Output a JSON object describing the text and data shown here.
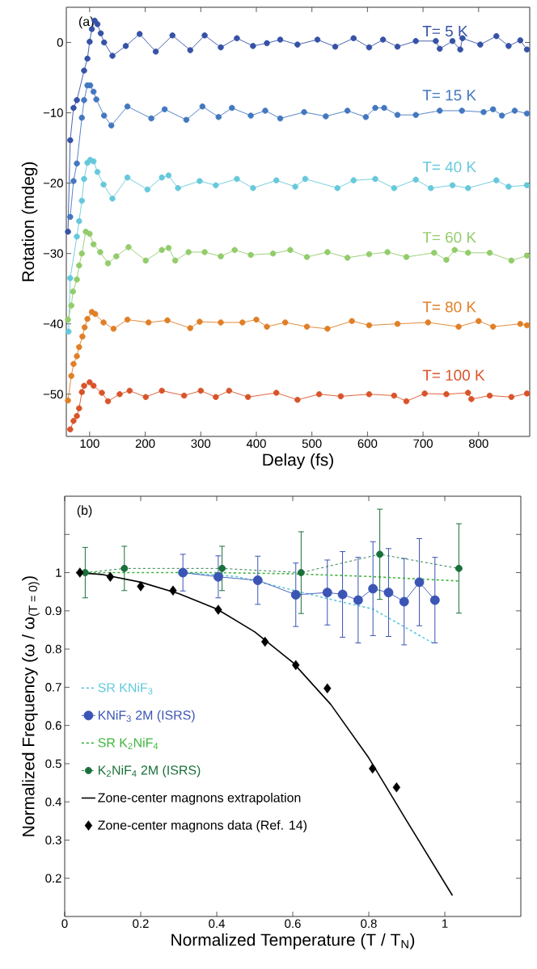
{
  "chart_data": [
    {
      "type": "line",
      "xlabel": "Delay (fs)",
      "ylabel": "Rotation (mdeg)",
      "annotations": [
        "(a)"
      ],
      "xlim": [
        58,
        892
      ],
      "ylim": [
        -56,
        5
      ],
      "xticks": [
        100,
        200,
        300,
        400,
        500,
        600,
        700,
        800
      ],
      "yticks": [
        {
          "value": 0,
          "label": "0"
        },
        {
          "value": -10,
          "label": "−10"
        },
        {
          "value": -20,
          "label": "−20"
        },
        {
          "value": -30,
          "label": "−30"
        },
        {
          "value": -40,
          "label": "−40"
        },
        {
          "value": -50,
          "label": "−50"
        }
      ],
      "marker": "circle",
      "line_style": "solid",
      "legend": false,
      "series": [
        {
          "name": "T= 5 K",
          "color": "#3651a6",
          "x": [
            61,
            65,
            71,
            77,
            90,
            96,
            100,
            104,
            109,
            114,
            120,
            126,
            141,
            165,
            190,
            219,
            249,
            281,
            307,
            336,
            365,
            394,
            419,
            443,
            474,
            510,
            542,
            575,
            603,
            628,
            654,
            687,
            723,
            730,
            753,
            767,
            771,
            803,
            832,
            854,
            875,
            887
          ],
          "values": [
            -26.9,
            -13.9,
            -9.3,
            -8.2,
            -4,
            -2.3,
            0.1,
            1.9,
            3.1,
            2.6,
            1.3,
            0,
            -1.9,
            -0.5,
            1.2,
            -1.3,
            1,
            -1.1,
            1,
            -0.7,
            0.6,
            -0.5,
            -0.1,
            0.4,
            -0.3,
            0.4,
            -0.6,
            0.6,
            -0.7,
            0.4,
            -0.6,
            0.2,
            0.2,
            -0.9,
            0.2,
            -1,
            0.6,
            -0.3,
            0.9,
            -0.5,
            0.3,
            -1.0
          ]
        },
        {
          "name": "T= 15 K",
          "color": "#4377c0",
          "x": [
            65,
            71,
            77,
            86,
            90,
            96,
            101,
            107,
            112,
            126,
            139,
            168,
            211,
            235,
            274,
            303,
            332,
            356,
            390,
            416,
            443,
            486,
            525,
            564,
            597,
            614,
            630,
            654,
            687,
            730,
            770,
            809,
            826,
            842,
            865,
            887
          ],
          "values": [
            -24.8,
            -19.7,
            -17.2,
            -10.7,
            -8.2,
            -6.1,
            -6.1,
            -7,
            -8.1,
            -10.4,
            -11.8,
            -9.1,
            -10.8,
            -9.5,
            -11,
            -9.1,
            -10.6,
            -9.3,
            -10.4,
            -9.7,
            -10.8,
            -9.9,
            -10.5,
            -9.7,
            -10.6,
            -9.3,
            -9.3,
            -10.3,
            -10.3,
            -9.7,
            -9.7,
            -9.9,
            -9.5,
            -10.4,
            -9.7,
            -10.1
          ]
        },
        {
          "name": "T= 40 K",
          "color": "#66c9db",
          "x": [
            62,
            65,
            77,
            81,
            86,
            90,
            96,
            101,
            107,
            114,
            125,
            141,
            168,
            204,
            230,
            242,
            259,
            298,
            327,
            365,
            394,
            436,
            470,
            488,
            546,
            575,
            614,
            648,
            687,
            714,
            753,
            781,
            832,
            854,
            887
          ],
          "values": [
            -41.1,
            -33.5,
            -27.6,
            -25.4,
            -22.5,
            -19.4,
            -17.1,
            -16.7,
            -16.9,
            -18.4,
            -20.2,
            -22.2,
            -19.2,
            -20.9,
            -19.2,
            -18.9,
            -20.7,
            -19.7,
            -20.3,
            -19.4,
            -20.7,
            -19.6,
            -20.5,
            -19.4,
            -20.7,
            -19.6,
            -19.4,
            -20.7,
            -19.5,
            -20.7,
            -20.3,
            -20.7,
            -19.6,
            -20.5,
            -20.3
          ]
        },
        {
          "name": "T= 60 K",
          "color": "#92cc6b",
          "x": [
            61,
            67,
            70,
            77,
            81,
            86,
            93,
            100,
            107,
            119,
            133,
            148,
            170,
            201,
            230,
            242,
            254,
            278,
            307,
            336,
            361,
            390,
            430,
            461,
            491,
            528,
            564,
            603,
            636,
            670,
            720,
            742,
            757,
            781,
            820,
            859,
            887
          ],
          "values": [
            -39.4,
            -37.4,
            -35.4,
            -33.7,
            -31.7,
            -30,
            -26.9,
            -27.2,
            -28.7,
            -29.8,
            -31.4,
            -30.4,
            -29.1,
            -31,
            -29.5,
            -29.2,
            -31,
            -29.8,
            -29.8,
            -30.4,
            -29.5,
            -30.2,
            -30,
            -29.5,
            -30.5,
            -29.8,
            -30.6,
            -30.1,
            -29.8,
            -30.5,
            -29.9,
            -30.9,
            -29.5,
            -29.9,
            -29.9,
            -31,
            -30.3
          ]
        },
        {
          "name": "T= 80 K",
          "color": "#e07f27",
          "x": [
            61,
            67,
            71,
            77,
            81,
            87,
            91,
            96,
            104,
            110,
            125,
            143,
            168,
            206,
            240,
            281,
            298,
            336,
            375,
            400,
            419,
            452,
            491,
            528,
            572,
            603,
            654,
            709,
            764,
            800,
            826,
            875,
            887
          ],
          "values": [
            -50.9,
            -47.4,
            -45.7,
            -44.6,
            -43.3,
            -41.8,
            -40.5,
            -39.3,
            -38.3,
            -38.6,
            -39.8,
            -40.7,
            -39.4,
            -39.8,
            -39.5,
            -40.6,
            -39.7,
            -39.8,
            -39.8,
            -39.4,
            -40.4,
            -39.8,
            -40.4,
            -40.7,
            -39.6,
            -40.2,
            -40,
            -39.8,
            -40.4,
            -39.6,
            -40.4,
            -40,
            -40.2
          ]
        },
        {
          "name": "T= 100 K",
          "color": "#d9532a",
          "x": [
            65,
            71,
            77,
            81,
            86,
            90,
            100,
            107,
            122,
            133,
            154,
            172,
            201,
            230,
            270,
            300,
            327,
            351,
            385,
            436,
            474,
            513,
            552,
            603,
            648,
            670,
            703,
            742,
            781,
            787,
            820,
            859,
            887
          ],
          "values": [
            -55,
            -53.8,
            -53.1,
            -52,
            -49.7,
            -48.8,
            -48.3,
            -48.8,
            -49.8,
            -51,
            -50,
            -49.5,
            -50.4,
            -49.5,
            -50.2,
            -49.5,
            -50.4,
            -49.5,
            -50.4,
            -49.8,
            -50.8,
            -50,
            -50.3,
            -50,
            -50.2,
            -51,
            -49.9,
            -50,
            -49.8,
            -50.7,
            -50.2,
            -50.4,
            -49.9
          ]
        }
      ]
    },
    {
      "type": "line",
      "xlabel": "Normalized Temperature (T / T$_{N}$)",
      "ylabel": "Normalized Frequency (ω / ω$_{(T = 0)}$)",
      "annotations": [
        "(b)"
      ],
      "xlim": [
        0,
        1.2
      ],
      "ylim": [
        0.1,
        1.2
      ],
      "xticks": [
        0,
        0.2,
        0.4,
        0.6,
        0.8,
        1
      ],
      "yticks": [
        0.2,
        0.3,
        0.4,
        0.5,
        0.6,
        0.7,
        0.8,
        0.9,
        1,
        {
          "value": 1.1,
          "label": null
        }
      ],
      "legend": "left",
      "series": [
        {
          "name": "SR KNiF$_{3}$",
          "color": "#5bc8dc",
          "type": "line",
          "line_style": "dashed",
          "marker": "none",
          "x": [
            0.31,
            0.45,
            0.56,
            0.7,
            0.81,
            0.89,
            0.97
          ],
          "values": [
            1.0,
            0.99,
            0.964,
            0.93,
            0.905,
            0.86,
            0.815
          ]
        },
        {
          "name": "KNiF$_{3}$  2M (ISRS)",
          "color": "#3b55b5",
          "type": "line",
          "line_style": "solid",
          "marker": "circle",
          "x": [
            0.311,
            0.404,
            0.508,
            0.608,
            0.691,
            0.731,
            0.772,
            0.811,
            0.852,
            0.893,
            0.933,
            0.974
          ],
          "values": [
            1.0,
            0.989,
            0.98,
            0.942,
            0.948,
            0.943,
            0.928,
            0.958,
            0.948,
            0.924,
            0.975,
            0.928
          ],
          "errors": [
            0.048,
            0.055,
            0.063,
            0.083,
            0.085,
            0.112,
            0.112,
            0.123,
            0.115,
            0.113,
            0.114,
            0.112
          ]
        },
        {
          "name": "SR K$_{2}$NiF$_{4}$",
          "color": "#3db53c",
          "type": "line",
          "line_style": "dashed",
          "marker": "none",
          "x": [
            0.05,
            0.4,
            0.6,
            0.8,
            1.04
          ],
          "values": [
            1.0,
            1.0,
            0.997,
            0.99,
            0.978
          ]
        },
        {
          "name": "K$_{2}$NiF$_{4}$ 2M (ISRS)",
          "color": "#19703a",
          "type": "line",
          "line_style": "dashed",
          "marker": "circle",
          "x": [
            0.054,
            0.157,
            0.414,
            0.622,
            0.829,
            1.037
          ],
          "values": [
            1.0,
            1.011,
            1.011,
            1.0,
            1.048,
            1.011
          ],
          "errors": [
            0.066,
            0.058,
            0.058,
            0.107,
            0.118,
            0.117
          ]
        },
        {
          "name": "Zone-center magnons extrapolation",
          "color": "#000000",
          "type": "line",
          "line_style": "solid",
          "marker": "none",
          "x": [
            0.03,
            0.1,
            0.2,
            0.3,
            0.4,
            0.5,
            0.6,
            0.7,
            0.8,
            0.9,
            1.02
          ],
          "values": [
            1.0,
            0.995,
            0.975,
            0.945,
            0.905,
            0.845,
            0.765,
            0.655,
            0.515,
            0.35,
            0.155
          ]
        },
        {
          "name": "Zone-center magnons data (Ref. 14)",
          "color": "#000000",
          "type": "scatter",
          "marker": "diamond",
          "x": [
            0.04,
            0.12,
            0.2,
            0.285,
            0.404,
            0.527,
            0.608,
            0.691,
            0.81,
            0.873
          ],
          "values": [
            1.0,
            0.989,
            0.964,
            0.953,
            0.903,
            0.819,
            0.758,
            0.697,
            0.487,
            0.438
          ]
        }
      ]
    }
  ]
}
